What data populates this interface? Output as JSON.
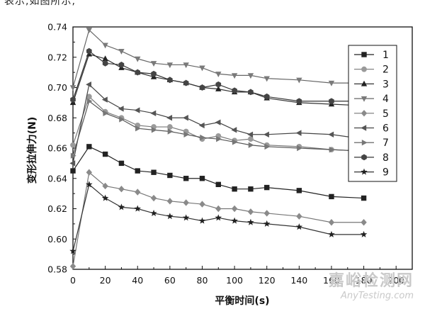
{
  "header_fragment": "表示,如图所示,",
  "watermark": {
    "cn": "嘉峪检测网",
    "en": "AnyTesting.com"
  },
  "chart_data": {
    "type": "line",
    "title": "",
    "xlabel": "平衡时间(s)",
    "ylabel": "变形拉伸力(N)",
    "xlim": [
      0,
      210
    ],
    "ylim": [
      0.58,
      0.74
    ],
    "x_ticks": [
      0,
      20,
      40,
      60,
      80,
      100,
      120,
      140,
      160,
      180,
      200
    ],
    "y_ticks": [
      0.58,
      0.6,
      0.62,
      0.64,
      0.66,
      0.68,
      0.7,
      0.72,
      0.74
    ],
    "x_tick_labels": [
      "0",
      "20",
      "40",
      "60",
      "80",
      "100",
      "120",
      "140",
      "160",
      "180",
      "200"
    ],
    "y_tick_labels": [
      "0.58",
      "0.60",
      "0.62",
      "0.64",
      "0.66",
      "0.68",
      "0.70",
      "0.72",
      "0.74"
    ],
    "grid": false,
    "legend_position": "right",
    "x": [
      0,
      10,
      20,
      30,
      40,
      50,
      60,
      70,
      80,
      90,
      100,
      110,
      120,
      140,
      160,
      180
    ],
    "series": [
      {
        "name": "1",
        "marker": "square",
        "values": [
          0.645,
          0.661,
          0.656,
          0.65,
          0.645,
          0.644,
          0.642,
          0.64,
          0.64,
          0.636,
          0.633,
          0.633,
          0.634,
          0.632,
          0.628,
          0.627
        ]
      },
      {
        "name": "2",
        "marker": "circle-light",
        "values": [
          0.662,
          0.694,
          0.684,
          0.68,
          0.675,
          0.674,
          0.674,
          0.671,
          0.666,
          0.668,
          0.665,
          0.666,
          0.662,
          0.661,
          0.659,
          0.658
        ]
      },
      {
        "name": "3",
        "marker": "triangle-up",
        "values": [
          0.69,
          0.722,
          0.719,
          0.713,
          0.71,
          0.707,
          0.705,
          0.703,
          0.7,
          0.699,
          0.697,
          0.697,
          0.693,
          0.69,
          0.689,
          0.688
        ]
      },
      {
        "name": "4",
        "marker": "triangle-down",
        "values": [
          0.7,
          0.738,
          0.728,
          0.724,
          0.719,
          0.716,
          0.715,
          0.715,
          0.713,
          0.709,
          0.708,
          0.708,
          0.706,
          0.705,
          0.703,
          0.703
        ]
      },
      {
        "name": "5",
        "marker": "diamond",
        "values": [
          0.582,
          0.644,
          0.635,
          0.633,
          0.631,
          0.627,
          0.625,
          0.624,
          0.623,
          0.62,
          0.62,
          0.618,
          0.617,
          0.615,
          0.611,
          0.611
        ]
      },
      {
        "name": "6",
        "marker": "triangle-left",
        "values": [
          0.65,
          0.702,
          0.692,
          0.686,
          0.685,
          0.683,
          0.68,
          0.68,
          0.675,
          0.677,
          0.672,
          0.669,
          0.669,
          0.67,
          0.669,
          0.666
        ]
      },
      {
        "name": "7",
        "marker": "triangle-right",
        "values": [
          0.655,
          0.691,
          0.683,
          0.679,
          0.673,
          0.672,
          0.671,
          0.669,
          0.667,
          0.666,
          0.664,
          0.662,
          0.661,
          0.66,
          0.659,
          0.658
        ]
      },
      {
        "name": "8",
        "marker": "hexagon",
        "values": [
          0.692,
          0.724,
          0.716,
          0.715,
          0.71,
          0.709,
          0.705,
          0.703,
          0.7,
          0.702,
          0.698,
          0.697,
          0.694,
          0.691,
          0.691,
          0.691
        ]
      },
      {
        "name": "9",
        "marker": "star",
        "values": [
          0.592,
          0.636,
          0.627,
          0.621,
          0.62,
          0.617,
          0.615,
          0.614,
          0.612,
          0.614,
          0.612,
          0.611,
          0.61,
          0.608,
          0.603,
          0.603
        ]
      }
    ]
  }
}
